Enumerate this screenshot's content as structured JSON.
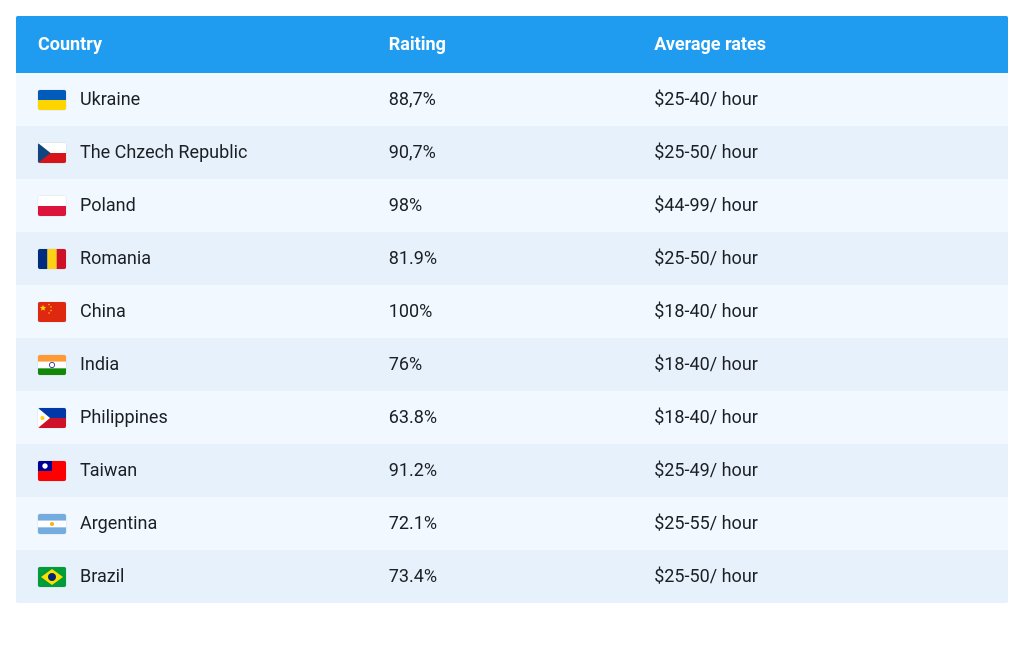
{
  "table": {
    "header_bg": "#1f9cf0",
    "header_fg": "#ffffff",
    "row_even_bg": "#f1f8ff",
    "row_odd_bg": "#e7f1fb",
    "text_color": "#1b1f24",
    "font_size_header": 18,
    "font_size_body": 18,
    "columns": {
      "country": "Country",
      "rating": "Raiting",
      "rates": "Average rates"
    },
    "rows": [
      {
        "flag": "ukraine",
        "country": "Ukraine",
        "rating": "88,7%",
        "rates": "$25-40/ hour"
      },
      {
        "flag": "czech",
        "country": "The Chzech Republic",
        "rating": "90,7%",
        "rates": "$25-50/ hour"
      },
      {
        "flag": "poland",
        "country": "Poland",
        "rating": "98%",
        "rates": "$44-99/ hour"
      },
      {
        "flag": "romania",
        "country": "Romania",
        "rating": "81.9%",
        "rates": "$25-50/ hour"
      },
      {
        "flag": "china",
        "country": "China",
        "rating": "100%",
        "rates": "$18-40/ hour"
      },
      {
        "flag": "india",
        "country": "India",
        "rating": "76%",
        "rates": "$18-40/ hour"
      },
      {
        "flag": "philippines",
        "country": "Philippines",
        "rating": "63.8%",
        "rates": "$18-40/ hour"
      },
      {
        "flag": "taiwan",
        "country": "Taiwan",
        "rating": "91.2%",
        "rates": "$25-49/ hour"
      },
      {
        "flag": "argentina",
        "country": "Argentina",
        "rating": "72.1%",
        "rates": "$25-55/ hour"
      },
      {
        "flag": "brazil",
        "country": "Brazil",
        "rating": "73.4%",
        "rates": "$25-50/ hour"
      }
    ]
  },
  "flags": {
    "ukraine": {
      "stripes_h": [
        "#005bbb",
        "#ffd500"
      ]
    },
    "czech": {
      "type": "czech",
      "top": "#ffffff",
      "bottom": "#d7141a",
      "triangle": "#11457e"
    },
    "poland": {
      "stripes_h": [
        "#ffffff",
        "#dc143c"
      ]
    },
    "romania": {
      "stripes_v": [
        "#002b7f",
        "#fcd116",
        "#ce1126"
      ]
    },
    "china": {
      "type": "china",
      "bg": "#de2910",
      "star": "#ffde00"
    },
    "india": {
      "type": "india",
      "stripes_h": [
        "#ff9933",
        "#ffffff",
        "#138808"
      ],
      "chakra": "#000080"
    },
    "philippines": {
      "type": "philippines",
      "top": "#0038a8",
      "bottom": "#ce1126",
      "triangle": "#ffffff",
      "sun": "#fcd116"
    },
    "taiwan": {
      "type": "taiwan",
      "bg": "#fe0000",
      "canton": "#000095",
      "sun": "#ffffff"
    },
    "argentina": {
      "type": "argentina",
      "stripes_h": [
        "#74acdf",
        "#ffffff",
        "#74acdf"
      ],
      "sun": "#f6b40e"
    },
    "brazil": {
      "type": "brazil",
      "bg": "#009b3a",
      "diamond": "#fedf00",
      "circle": "#002776"
    }
  }
}
